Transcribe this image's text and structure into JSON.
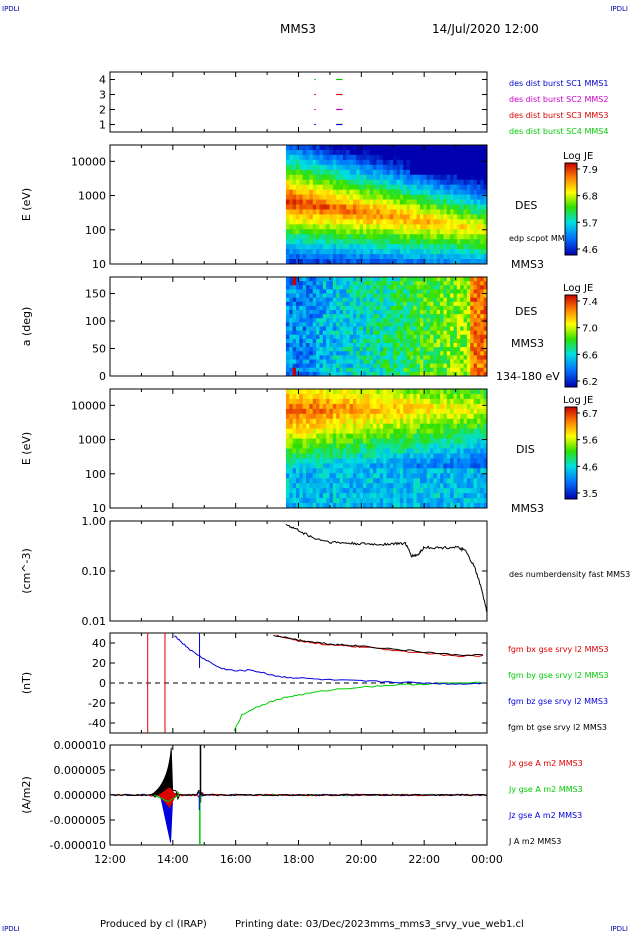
{
  "header": {
    "corner_tl": "IPDLI",
    "corner_tr": "IPDLI",
    "corner_bl": "IPDLI",
    "corner_br": "IPDLI",
    "mission": "MMS3",
    "datetime": "14/Jul/2020 12:00"
  },
  "footer": {
    "producer": "Produced by cl (IRAP)",
    "printing_date": "Printing date: 03/Dec/2023",
    "file_name": "mms_mms3_srvy_vue_web1.cl"
  },
  "colors": {
    "mms1": "#0000cc",
    "mms2": "#cc00cc",
    "mms3": "#dd0000",
    "mms4": "#00cc00",
    "bx": "#dd0000",
    "by": "#00cc00",
    "bz": "#0000dd",
    "bt": "#000000"
  },
  "chart_data": [
    {
      "id": "burst",
      "type": "scatter",
      "xlabel": "",
      "ylabel": "",
      "yticks": [
        "1",
        "2",
        "3",
        "4"
      ],
      "ylim": [
        0.5,
        4.5
      ],
      "series": [
        {
          "name": "des dist burst SC1 MMS1",
          "color": "#0000cc",
          "level": 1,
          "segments": [
            [
              18.5,
              18.55
            ],
            [
              19.2,
              19.4
            ]
          ]
        },
        {
          "name": "des dist burst SC2 MMS2",
          "color": "#cc00cc",
          "level": 2,
          "segments": [
            [
              18.5,
              18.55
            ],
            [
              19.2,
              19.4
            ]
          ]
        },
        {
          "name": "des dist burst SC3 MMS3",
          "color": "#dd0000",
          "level": 3,
          "segments": [
            [
              18.5,
              18.55
            ],
            [
              19.2,
              19.4
            ]
          ]
        },
        {
          "name": "des dist burst SC4 MMS4",
          "color": "#00cc00",
          "level": 4,
          "segments": [
            [
              18.5,
              18.55
            ],
            [
              19.2,
              19.4
            ]
          ]
        }
      ]
    },
    {
      "id": "des-energy",
      "type": "heatmap",
      "ylabel": "E (eV)",
      "yscale": "log",
      "ylim": [
        10,
        30000
      ],
      "yticks": [
        "10",
        "100",
        "1000",
        "10000"
      ],
      "data_start_hour": 17.6,
      "instrument": "DES",
      "sc": "MMS3",
      "side_label": "edp scpot MMS3",
      "colorbar": {
        "title": "Log JE",
        "ticks": [
          "7.9",
          "6.8",
          "5.7",
          "4.6"
        ],
        "min": 4.6,
        "max": 7.9
      }
    },
    {
      "id": "des-pitch",
      "type": "heatmap",
      "ylabel": "a (deg)",
      "ylim": [
        0,
        180
      ],
      "yticks": [
        "0",
        "50",
        "100",
        "150"
      ],
      "data_start_hour": 17.6,
      "instrument": "DES",
      "sc": "MMS3",
      "energy_range": "134-180 eV",
      "colorbar": {
        "title": "Log JE",
        "ticks": [
          "7.4",
          "7.0",
          "6.6",
          "6.2"
        ],
        "min": 6.2,
        "max": 7.4
      }
    },
    {
      "id": "dis-energy",
      "type": "heatmap",
      "ylabel": "E (eV)",
      "yscale": "log",
      "ylim": [
        10,
        30000
      ],
      "yticks": [
        "10",
        "100",
        "1000",
        "10000"
      ],
      "data_start_hour": 17.6,
      "instrument": "DIS",
      "sc": "MMS3",
      "colorbar": {
        "title": "Log JE",
        "ticks": [
          "6.7",
          "5.6",
          "4.6",
          "3.5"
        ],
        "min": 3.5,
        "max": 6.7
      }
    },
    {
      "id": "density",
      "type": "line",
      "ylabel": "(cm^-3)",
      "yscale": "log",
      "ylim": [
        0.01,
        1.0
      ],
      "yticks": [
        "0.01",
        "0.10",
        "1.00"
      ],
      "series": [
        {
          "name": "des numberdensity fast MMS3",
          "color": "#000000",
          "x": [
            17.6,
            18.0,
            18.5,
            19.0,
            19.5,
            20.0,
            20.5,
            21.0,
            21.4,
            21.6,
            21.8,
            22.0,
            22.5,
            23.0,
            23.3,
            23.6,
            23.8,
            24.0
          ],
          "y": [
            0.85,
            0.65,
            0.45,
            0.38,
            0.36,
            0.35,
            0.34,
            0.35,
            0.36,
            0.2,
            0.21,
            0.3,
            0.29,
            0.3,
            0.26,
            0.12,
            0.05,
            0.015
          ]
        }
      ]
    },
    {
      "id": "fgm",
      "type": "line",
      "ylabel": "(nT)",
      "ylim": [
        -50,
        50
      ],
      "yticks": [
        "-40",
        "-20",
        "0",
        "20",
        "40"
      ],
      "zero_line": true,
      "series": [
        {
          "name": "fgm bx gse srvy l2 MMS3",
          "color": "#dd0000",
          "x": [
            17.3,
            18.0,
            18.5,
            19.0,
            19.5,
            20.0,
            21.0,
            22.0,
            23.0,
            24.0
          ],
          "y": [
            48,
            42,
            40,
            38,
            37,
            36,
            33,
            30,
            27,
            27
          ]
        },
        {
          "name": "fgm by gse srvy l2 MMS3",
          "color": "#00cc00",
          "x": [
            15.95,
            16.2,
            16.6,
            17.0,
            17.5,
            18.0,
            19.0,
            20.0,
            21.0,
            22.0,
            23.0,
            24.0
          ],
          "y": [
            -48,
            -32,
            -25,
            -20,
            -15,
            -12,
            -7,
            -4,
            -2,
            -1,
            0,
            0
          ]
        },
        {
          "name": "fgm bz gse srvy l2 MMS3",
          "color": "#0000dd",
          "x": [
            14.05,
            14.3,
            14.6,
            15.0,
            15.5,
            16.0,
            16.5,
            17.0,
            17.5,
            18.0,
            19.0,
            20.0,
            21.0,
            22.0,
            23.0,
            24.0
          ],
          "y": [
            48,
            40,
            32,
            24,
            15,
            12,
            13,
            9,
            6,
            5,
            3,
            2,
            1,
            0,
            -1,
            0
          ]
        },
        {
          "name": "fgm bt gse srvy l2 MMS3",
          "color": "#000000",
          "x": [
            17.2,
            18.0,
            18.5,
            19.0,
            19.5,
            20.0,
            21.0,
            22.0,
            23.0,
            24.0
          ],
          "y": [
            48,
            43,
            41,
            39,
            38,
            37,
            34,
            31,
            28,
            28
          ]
        }
      ]
    },
    {
      "id": "current",
      "type": "line",
      "ylabel": "(A/m2)",
      "ylim": [
        -1e-05,
        1e-05
      ],
      "yticks": [
        "-0.000010",
        "-0.000005",
        "0.000000",
        "0.000005",
        "0.000010"
      ],
      "series": [
        {
          "name": "Jx gse A m2 MMS3",
          "color": "#dd0000"
        },
        {
          "name": "Jy gse A m2 MMS3",
          "color": "#00cc00"
        },
        {
          "name": "Jz gse A m2 MMS3",
          "color": "#0000dd"
        },
        {
          "name": "J A m2 MMS3",
          "color": "#000000"
        }
      ]
    }
  ],
  "xaxis": {
    "xlim": [
      12,
      24
    ],
    "ticks": [
      "12:00",
      "14:00",
      "16:00",
      "18:00",
      "20:00",
      "22:00",
      "00:00"
    ]
  }
}
